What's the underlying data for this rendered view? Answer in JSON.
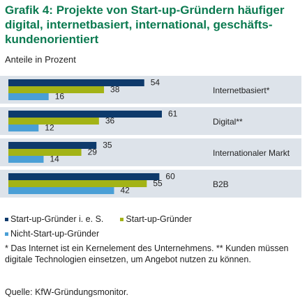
{
  "title": "Grafik 4: Projekte von Start-up-Gründern häufiger digital, internetbasiert, international, geschäfts-kundenorientiert",
  "subtitle": "Anteile in Prozent",
  "footnote": "* Das Internet ist ein Kernelement des Unternehmens. ** Kunden müssen digitale Technologien einsetzen, um Angebot nutzen zu können.",
  "source": "Quelle: KfW-Gründungsmonitor.",
  "chart_data": {
    "type": "bar",
    "orientation": "horizontal",
    "categories": [
      "Internetbasiert*",
      "Digital**",
      "Internationaler Markt",
      "B2B"
    ],
    "series": [
      {
        "name": "Start-up-Gründer i. e. S.",
        "color": "#0e3a6b",
        "values": [
          54,
          61,
          35,
          60
        ]
      },
      {
        "name": "Start-up-Gründer",
        "color": "#a3b316",
        "values": [
          38,
          36,
          29,
          55
        ]
      },
      {
        "name": "Nicht-Start-up-Gründer",
        "color": "#4a9fd6",
        "values": [
          16,
          12,
          14,
          42
        ]
      }
    ],
    "xlim": [
      0,
      70
    ],
    "grid": false,
    "band_color": "#dde3ea",
    "legend_position": "bottom"
  }
}
